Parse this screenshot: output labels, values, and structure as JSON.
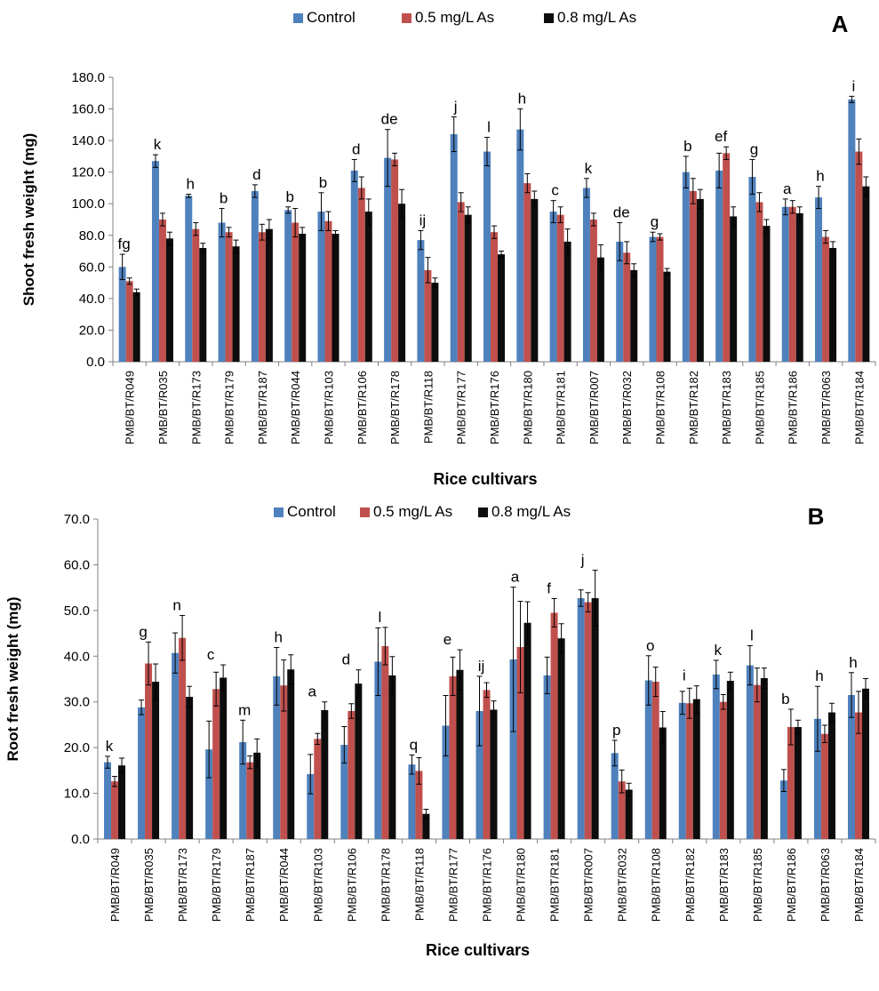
{
  "chart_data": [
    {
      "type": "bar",
      "panel_label": "A",
      "title": "",
      "xlabel": "Rice cultivars",
      "ylabel": "Shoot fresh weight (mg)",
      "ylim": [
        0,
        180
      ],
      "yticks": [
        "0.0",
        "20.0",
        "40.0",
        "60.0",
        "80.0",
        "100.0",
        "120.0",
        "140.0",
        "160.0",
        "180.0"
      ],
      "grid": false,
      "legend": "top-center",
      "categories": [
        "PMB/BT/R049",
        "PMB/BT/R035",
        "PMB/BT/R173",
        "PMB/BT/R179",
        "PMB/BT/R187",
        "PMB/BT/R044",
        "PMB/BT/R103",
        "PMB/BT/R106",
        "PMB/BT/R178",
        "PMB/BT/R118",
        "PMB/BT/R177",
        "PMB/BT/R176",
        "PMB/BT/R180",
        "PMB/BT/R181",
        "PMB/BT/R007",
        "PMB/BT/R032",
        "PMB/BT/R108",
        "PMB/BT/R182",
        "PMB/BT/R183",
        "PMB/BT/R185",
        "PMB/BT/R186",
        "PMB/BT/R063",
        "PMB/BT/R184"
      ],
      "series": [
        {
          "name": "Control",
          "color": "#4f81bd",
          "values": [
            60,
            127,
            105,
            88,
            108,
            96,
            95,
            121,
            129,
            77,
            144,
            133,
            147,
            95,
            110,
            76,
            79,
            120,
            121,
            117,
            98,
            104,
            166
          ],
          "errors": [
            8,
            4,
            1,
            9,
            4,
            2,
            12,
            7,
            18,
            6,
            11,
            9,
            13,
            7,
            6,
            12,
            3,
            10,
            11,
            11,
            5,
            7,
            2
          ]
        },
        {
          "name": "0.5 mg/L As",
          "color": "#c0504d",
          "values": [
            51,
            90,
            84,
            82,
            82,
            88,
            89,
            110,
            128,
            58,
            101,
            82,
            113,
            93,
            90,
            69,
            79,
            108,
            132,
            101,
            98,
            79,
            133
          ],
          "errors": [
            2,
            4,
            4,
            3,
            5,
            9,
            6,
            7,
            4,
            8,
            6,
            4,
            6,
            5,
            4,
            7,
            2,
            8,
            4,
            6,
            4,
            4,
            8
          ]
        },
        {
          "name": "0.8 mg/L As",
          "color": "#0d0d0d",
          "values": [
            44,
            78,
            72,
            73,
            84,
            81,
            81,
            95,
            100,
            50,
            93,
            68,
            103,
            76,
            66,
            58,
            57,
            103,
            92,
            86,
            94,
            72,
            111
          ],
          "errors": [
            2,
            4,
            3,
            4,
            6,
            4,
            2,
            8,
            9,
            3,
            5,
            2,
            5,
            8,
            8,
            4,
            2,
            6,
            6,
            4,
            4,
            4,
            6
          ]
        }
      ],
      "annotations": [
        "fg",
        "k",
        "h",
        "b",
        "d",
        "b",
        "b",
        "d",
        "de",
        "ij",
        "j",
        "l",
        "h",
        "c",
        "k",
        "de",
        "g",
        "b",
        "ef",
        "g",
        "a",
        "h",
        "i"
      ]
    },
    {
      "type": "bar",
      "panel_label": "B",
      "title": "",
      "xlabel": "Rice cultivars",
      "ylabel": "Root fresh weight (mg)",
      "ylim": [
        0,
        70
      ],
      "yticks": [
        "0.0",
        "10.0",
        "20.0",
        "30.0",
        "40.0",
        "50.0",
        "60.0",
        "70.0"
      ],
      "grid": false,
      "legend": "top-center",
      "categories": [
        "PMB/BT/R049",
        "PMB/BT/R035",
        "PMB/BT/R173",
        "PMB/BT/R179",
        "PMB/BT/R187",
        "PMB/BT/R044",
        "PMB/BT/R103",
        "PMB/BT/R106",
        "PMB/BT/R178",
        "PMB/BT/R118",
        "PMB/BT/R177",
        "PMB/BT/R176",
        "PMB/BT/R180",
        "PMB/BT/R181",
        "PMB/BT/R007",
        "PMB/BT/R032",
        "PMB/BT/R108",
        "PMB/BT/R182",
        "PMB/BT/R183",
        "PMB/BT/R185",
        "PMB/BT/R186",
        "PMB/BT/R063",
        "PMB/BT/R184"
      ],
      "series": [
        {
          "name": "Control",
          "color": "#4f81bd",
          "values": [
            16.8,
            28.8,
            40.7,
            19.6,
            21.2,
            35.6,
            14.2,
            20.6,
            38.8,
            16.3,
            24.8,
            28.0,
            39.3,
            35.8,
            52.7,
            18.8,
            34.7,
            29.8,
            36.0,
            38.0,
            12.8,
            26.3,
            31.5
          ],
          "errors": [
            1.3,
            1.6,
            4.4,
            6.2,
            4.8,
            6.3,
            4.3,
            4.0,
            7.4,
            2.1,
            6.6,
            7.6,
            15.8,
            4.0,
            1.8,
            2.8,
            5.4,
            2.5,
            3.1,
            4.3,
            2.4,
            7.1,
            4.9
          ]
        },
        {
          "name": "0.5 mg/L As",
          "color": "#c0504d",
          "values": [
            12.6,
            38.4,
            44.0,
            32.8,
            16.8,
            33.6,
            21.9,
            28.0,
            42.2,
            14.9,
            35.6,
            32.6,
            42.0,
            49.5,
            51.8,
            12.6,
            34.4,
            29.7,
            30.0,
            33.7,
            24.5,
            23.0,
            27.7
          ],
          "errors": [
            1.1,
            4.7,
            4.9,
            3.7,
            1.4,
            5.6,
            1.2,
            1.6,
            4.1,
            2.9,
            4.2,
            1.6,
            10.0,
            3.1,
            2.1,
            2.5,
            3.2,
            3.3,
            1.6,
            3.7,
            3.9,
            1.9,
            4.6
          ]
        },
        {
          "name": "0.8 mg/L As",
          "color": "#0d0d0d",
          "values": [
            16.1,
            34.4,
            31.1,
            35.3,
            18.9,
            37.1,
            28.2,
            34.0,
            35.8,
            5.5,
            37.0,
            28.3,
            47.3,
            43.9,
            52.7,
            10.8,
            24.4,
            30.6,
            34.6,
            35.2,
            24.5,
            27.7,
            32.9
          ],
          "errors": [
            1.6,
            3.9,
            2.3,
            2.8,
            3.0,
            3.2,
            1.8,
            3.0,
            4.1,
            1.0,
            4.4,
            1.9,
            4.6,
            3.2,
            6.1,
            1.4,
            3.5,
            2.9,
            1.9,
            2.2,
            1.5,
            2.0,
            2.2
          ]
        }
      ],
      "annotations": [
        "k",
        "g",
        "n",
        "c",
        "m",
        "h",
        "a",
        "d",
        "l",
        "q",
        "e",
        "ij",
        "a",
        "f",
        "j",
        "p",
        "o",
        "i",
        "k",
        "l",
        "b",
        "h",
        "h"
      ]
    }
  ]
}
